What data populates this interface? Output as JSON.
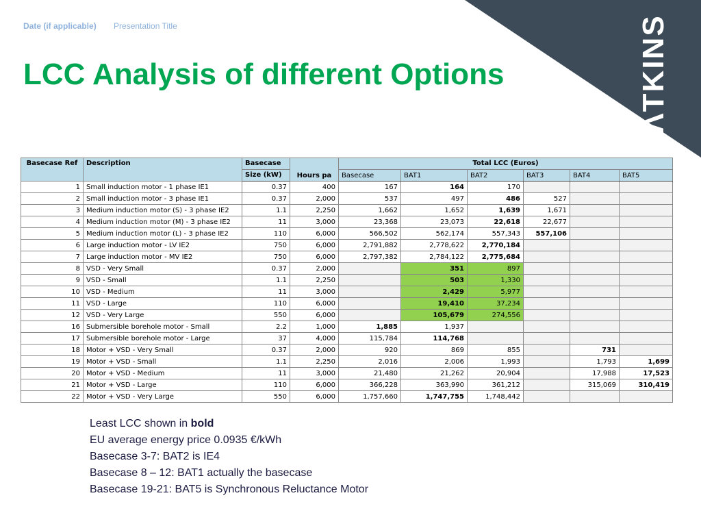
{
  "header": {
    "date": "Date (if applicable)",
    "presentation_title": "Presentation Title"
  },
  "title": "LCC Analysis of different Options",
  "brand": {
    "logo_text": "ATKINS",
    "color": "#3c4b57",
    "title_color": "#00a651",
    "highlight_color": "#92d050",
    "header_color": "#bcdcea"
  },
  "table": {
    "headers": {
      "basecase_ref": "Basecase Ref",
      "description": "Description",
      "basecase": "Basecase",
      "size": "Size (kW)",
      "hours": "Hours pa",
      "total_lcc": "Total LCC (Euros)",
      "col_basecase": "Basecase",
      "bat1": "BAT1",
      "bat2": "BAT2",
      "bat3": "BAT3",
      "bat4": "BAT4",
      "bat5": "BAT5"
    },
    "rows": [
      {
        "ref": "1",
        "desc": "Small induction motor - 1 phase IE1",
        "size": "0.37",
        "hours": "400",
        "base": "167",
        "bat1": "164",
        "bat2": "170",
        "bat3": "",
        "bat4": "",
        "bat5": ""
      },
      {
        "ref": "2",
        "desc": "Small induction motor - 3 phase IE1",
        "size": "0.37",
        "hours": "2,000",
        "base": "537",
        "bat1": "497",
        "bat2": "486",
        "bat3": "527",
        "bat4": "",
        "bat5": ""
      },
      {
        "ref": "3",
        "desc": "Medium induction motor (S) - 3 phase IE2",
        "size": "1.1",
        "hours": "2,250",
        "base": "1,662",
        "bat1": "1,652",
        "bat2": "1,639",
        "bat3": "1,671",
        "bat4": "",
        "bat5": ""
      },
      {
        "ref": "4",
        "desc": "Medium induction motor (M) - 3 phase IE2",
        "size": "11",
        "hours": "3,000",
        "base": "23,368",
        "bat1": "23,073",
        "bat2": "22,618",
        "bat3": "22,677",
        "bat4": "",
        "bat5": ""
      },
      {
        "ref": "5",
        "desc": "Medium induction motor (L) - 3 phase IE2",
        "size": "110",
        "hours": "6,000",
        "base": "566,502",
        "bat1": "562,174",
        "bat2": "557,343",
        "bat3": "557,106",
        "bat4": "",
        "bat5": ""
      },
      {
        "ref": "6",
        "desc": "Large induction motor - LV IE2",
        "size": "750",
        "hours": "6,000",
        "base": "2,791,882",
        "bat1": "2,778,622",
        "bat2": "2,770,184",
        "bat3": "",
        "bat4": "",
        "bat5": ""
      },
      {
        "ref": "7",
        "desc": "Large induction motor - MV IE2",
        "size": "750",
        "hours": "6,000",
        "base": "2,797,382",
        "bat1": "2,784,122",
        "bat2": "2,775,684",
        "bat3": "",
        "bat4": "",
        "bat5": ""
      },
      {
        "ref": "8",
        "desc": "VSD - Very Small",
        "size": "0.37",
        "hours": "2,000",
        "base": "",
        "bat1": "351",
        "bat2": "897",
        "bat3": "",
        "bat4": "",
        "bat5": ""
      },
      {
        "ref": "9",
        "desc": "VSD - Small",
        "size": "1.1",
        "hours": "2,250",
        "base": "",
        "bat1": "503",
        "bat2": "1,330",
        "bat3": "",
        "bat4": "",
        "bat5": ""
      },
      {
        "ref": "10",
        "desc": "VSD - Medium",
        "size": "11",
        "hours": "3,000",
        "base": "",
        "bat1": "2,429",
        "bat2": "5,977",
        "bat3": "",
        "bat4": "",
        "bat5": ""
      },
      {
        "ref": "11",
        "desc": "VSD - Large",
        "size": "110",
        "hours": "6,000",
        "base": "",
        "bat1": "19,410",
        "bat2": "37,234",
        "bat3": "",
        "bat4": "",
        "bat5": ""
      },
      {
        "ref": "12",
        "desc": "VSD - Very Large",
        "size": "550",
        "hours": "6,000",
        "base": "",
        "bat1": "105,679",
        "bat2": "274,556",
        "bat3": "",
        "bat4": "",
        "bat5": ""
      },
      {
        "ref": "16",
        "desc": "Submersible borehole motor - Small",
        "size": "2.2",
        "hours": "1,000",
        "base": "1,885",
        "bat1": "1,937",
        "bat2": "",
        "bat3": "",
        "bat4": "",
        "bat5": ""
      },
      {
        "ref": "17",
        "desc": "Submersible borehole motor - Large",
        "size": "37",
        "hours": "4,000",
        "base": "115,784",
        "bat1": "114,768",
        "bat2": "",
        "bat3": "",
        "bat4": "",
        "bat5": ""
      },
      {
        "ref": "18",
        "desc": "Motor + VSD - Very Small",
        "size": "0.37",
        "hours": "2,000",
        "base": "920",
        "bat1": "869",
        "bat2": "855",
        "bat3": "",
        "bat4": "731",
        "bat5": ""
      },
      {
        "ref": "19",
        "desc": "Motor + VSD - Small",
        "size": "1.1",
        "hours": "2,250",
        "base": "2,016",
        "bat1": "2,006",
        "bat2": "1,993",
        "bat3": "",
        "bat4": "1,793",
        "bat5": "1,699"
      },
      {
        "ref": "20",
        "desc": "Motor + VSD - Medium",
        "size": "11",
        "hours": "3,000",
        "base": "21,480",
        "bat1": "21,262",
        "bat2": "20,904",
        "bat3": "",
        "bat4": "17,988",
        "bat5": "17,523"
      },
      {
        "ref": "21",
        "desc": "Motor + VSD - Large",
        "size": "110",
        "hours": "6,000",
        "base": "366,228",
        "bat1": "363,990",
        "bat2": "361,212",
        "bat3": "",
        "bat4": "315,069",
        "bat5": "310,419"
      },
      {
        "ref": "22",
        "desc": "Motor + VSD - Very Large",
        "size": "550",
        "hours": "6,000",
        "base": "1,757,660",
        "bat1": "1,747,755",
        "bat2": "1,748,442",
        "bat3": "",
        "bat4": "",
        "bat5": ""
      }
    ]
  },
  "notes": {
    "line1_prefix": "Least LCC shown in ",
    "line1_bold": "bold",
    "line2": "EU average energy price 0.0935 €/kWh",
    "line3": "Basecase 3-7: BAT2 is IE4",
    "line4": "Basecase 8 – 12: BAT1 actually the basecase",
    "line5": "Basecase 19-21: BAT5 is Synchronous Reluctance Motor"
  }
}
